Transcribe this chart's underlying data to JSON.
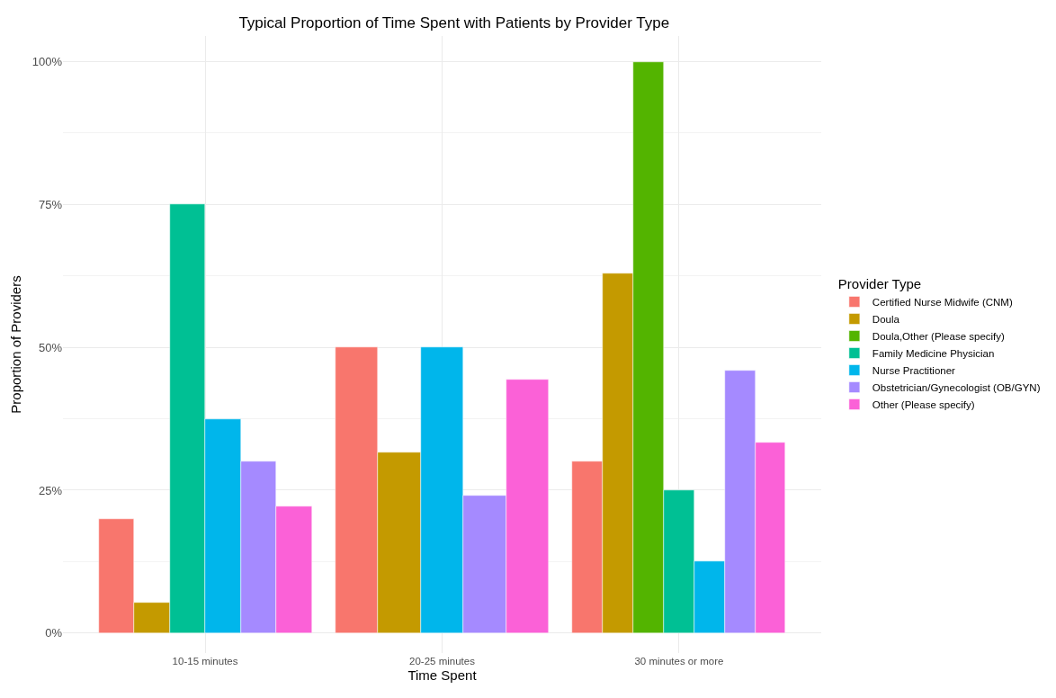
{
  "chart_data": {
    "type": "bar",
    "title": "Typical Proportion of Time Spent with Patients by Provider Type",
    "xlabel": "Time Spent",
    "ylabel": "Proportion of Providers",
    "legend_title": "Provider Type",
    "categories": [
      "10-15 minutes",
      "20-25 minutes",
      "30 minutes or more"
    ],
    "series": [
      {
        "name": "Certified Nurse Midwife (CNM)",
        "color": "#f8766d",
        "values": [
          20,
          50,
          30
        ]
      },
      {
        "name": "Doula",
        "color": "#c49a00",
        "values": [
          5.3,
          31.6,
          63
        ]
      },
      {
        "name": "Doula,Other (Please specify)",
        "color": "#53b400",
        "values": [
          null,
          null,
          100
        ]
      },
      {
        "name": "Family Medicine Physician",
        "color": "#00c094",
        "values": [
          75,
          null,
          25
        ]
      },
      {
        "name": "Nurse Practitioner",
        "color": "#00b6eb",
        "values": [
          37.5,
          50,
          12.5
        ]
      },
      {
        "name": "Obstetrician/Gynecologist (OB/GYN)",
        "color": "#a58aff",
        "values": [
          30,
          24,
          46
        ]
      },
      {
        "name": "Other (Please specify)",
        "color": "#fb61d7",
        "values": [
          22.2,
          44.4,
          33.3
        ]
      }
    ],
    "ylim": [
      -3.5,
      104.5
    ],
    "yticks": [
      {
        "value": 0,
        "label": "0%"
      },
      {
        "value": 25,
        "label": "25%"
      },
      {
        "value": 50,
        "label": "50%"
      },
      {
        "value": 75,
        "label": "75%"
      },
      {
        "value": 100,
        "label": "100%"
      }
    ],
    "grid": true,
    "legend": "right"
  }
}
